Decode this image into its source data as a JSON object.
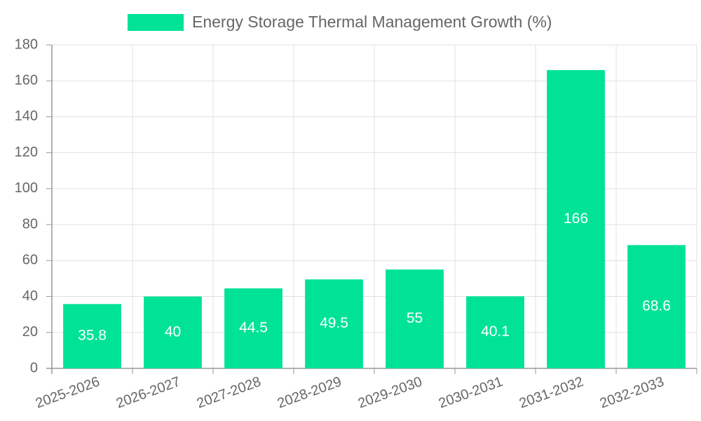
{
  "colors": {
    "bar": "#00e396",
    "grid": "#e0e0e0",
    "axis": "#999999",
    "text": "#666666"
  },
  "chart_data": {
    "type": "bar",
    "legend": {
      "label": "Energy Storage Thermal Management Growth (%)",
      "position": "top"
    },
    "categories": [
      "2025-2026",
      "2026-2027",
      "2027-2028",
      "2028-2029",
      "2029-2030",
      "2030-2031",
      "2031-2032",
      "2032-2033"
    ],
    "series": [
      {
        "name": "Energy Storage Thermal Management Growth (%)",
        "values": [
          35.8,
          40,
          44.5,
          49.5,
          55,
          40.1,
          166,
          68.6
        ]
      }
    ],
    "ylim": [
      0,
      180
    ],
    "yticks": [
      0,
      20,
      40,
      60,
      80,
      100,
      120,
      140,
      160,
      180
    ],
    "grid": true,
    "data_labels": true
  }
}
